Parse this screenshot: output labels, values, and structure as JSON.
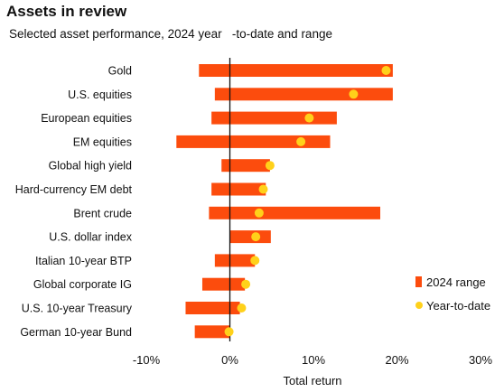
{
  "chart_data": {
    "type": "range-dot",
    "title": "Assets in review",
    "subtitle": "Selected asset performance, 2024 year   -to-date and range",
    "xlabel": "Total return",
    "xlim": [
      -0.1,
      0.3
    ],
    "xticks": [
      -0.1,
      0,
      0.1,
      0.2,
      0.3
    ],
    "xtick_labels": [
      "-10%",
      "0%",
      "10%",
      "20%",
      "30%"
    ],
    "categories": [
      "Gold",
      "U.S. equities",
      "European equities",
      "EM equities",
      "Global high yield",
      "Hard-currency EM debt",
      "Brent crude",
      "U.S. dollar index",
      "Italian 10-year BTP",
      "Global corporate IG",
      "U.S. 10-year Treasury",
      "German 10-year Bund"
    ],
    "series": [
      {
        "name": "2024 range",
        "color": "#fc4c0d",
        "ranges": [
          [
            -0.037,
            0.195
          ],
          [
            -0.018,
            0.195
          ],
          [
            -0.022,
            0.128
          ],
          [
            -0.064,
            0.12
          ],
          [
            -0.01,
            0.048
          ],
          [
            -0.022,
            0.043
          ],
          [
            -0.025,
            0.18
          ],
          [
            0.0,
            0.049
          ],
          [
            -0.018,
            0.03
          ],
          [
            -0.033,
            0.018
          ],
          [
            -0.053,
            0.012
          ],
          [
            -0.042,
            0.0
          ]
        ]
      },
      {
        "name": "Year-to-date",
        "color": "#ffd11a",
        "values": [
          0.187,
          0.148,
          0.095,
          0.085,
          0.048,
          0.04,
          0.035,
          0.031,
          0.03,
          0.019,
          0.014,
          -0.001
        ]
      }
    ],
    "legend_position": "right",
    "grid": false
  }
}
